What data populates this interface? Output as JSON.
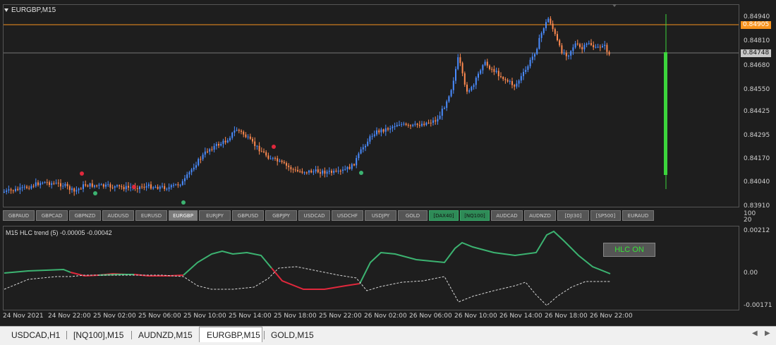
{
  "chart": {
    "title": "EURGBP,M15",
    "price_labels": [
      "0.84940",
      "0.84810",
      "0.84680",
      "0.84550",
      "0.84425",
      "0.84295",
      "0.84170",
      "0.84040",
      "0.83910"
    ],
    "ask_tag": "0.84905",
    "bid_tag": "0.84748",
    "ask_color": "#f7931e",
    "bid_color": "#c8c8c8",
    "bull_color": "#4a8cff",
    "bear_color": "#ff8a50"
  },
  "symbol_buttons": [
    {
      "label": "GBPAUD",
      "style": "normal"
    },
    {
      "label": "GBPCAD",
      "style": "normal"
    },
    {
      "label": "GBPNZD",
      "style": "normal"
    },
    {
      "label": "AUDUSD",
      "style": "normal"
    },
    {
      "label": "EURUSD",
      "style": "normal"
    },
    {
      "label": "EURGBP",
      "style": "active"
    },
    {
      "label": "EURJPY",
      "style": "normal"
    },
    {
      "label": "GBPUSD",
      "style": "normal"
    },
    {
      "label": "GBPJPY",
      "style": "normal"
    },
    {
      "label": "USDCAD",
      "style": "normal"
    },
    {
      "label": "USDCHF",
      "style": "normal"
    },
    {
      "label": "USDJPY",
      "style": "normal"
    },
    {
      "label": "GOLD",
      "style": "normal"
    },
    {
      "label": "[DAX40]",
      "style": "green"
    },
    {
      "label": "[NQ100]",
      "style": "green"
    },
    {
      "label": "AUDCAD",
      "style": "normal"
    },
    {
      "label": "AUDNZD",
      "style": "normal"
    },
    {
      "label": "[DJI30]",
      "style": "normal"
    },
    {
      "label": "[SP500]",
      "style": "normal"
    },
    {
      "label": "EURAUD",
      "style": "normal"
    }
  ],
  "separator_axis": {
    "top": "100",
    "bottom": "20"
  },
  "indicator": {
    "title": "M15  HLC trend (5) -0.00005 -0.00042",
    "button_label": "HLC ON",
    "axis_labels": [
      "0.00212",
      "0.00",
      "-0.00171"
    ]
  },
  "time_labels": [
    "24 Nov 2021",
    "24 Nov 22:00",
    "25 Nov 02:00",
    "25 Nov 06:00",
    "25 Nov 10:00",
    "25 Nov 14:00",
    "25 Nov 18:00",
    "25 Nov 22:00",
    "26 Nov 02:00",
    "26 Nov 06:00",
    "26 Nov 10:00",
    "26 Nov 14:00",
    "26 Nov 18:00",
    "26 Nov 22:00"
  ],
  "tabs": [
    {
      "label": "USDCAD,H1",
      "active": false
    },
    {
      "label": "[NQ100],M15",
      "active": false
    },
    {
      "label": "AUDNZD,M15",
      "active": false
    },
    {
      "label": "EURGBP,M15",
      "active": true
    },
    {
      "label": "GOLD,M15",
      "active": false
    }
  ]
}
